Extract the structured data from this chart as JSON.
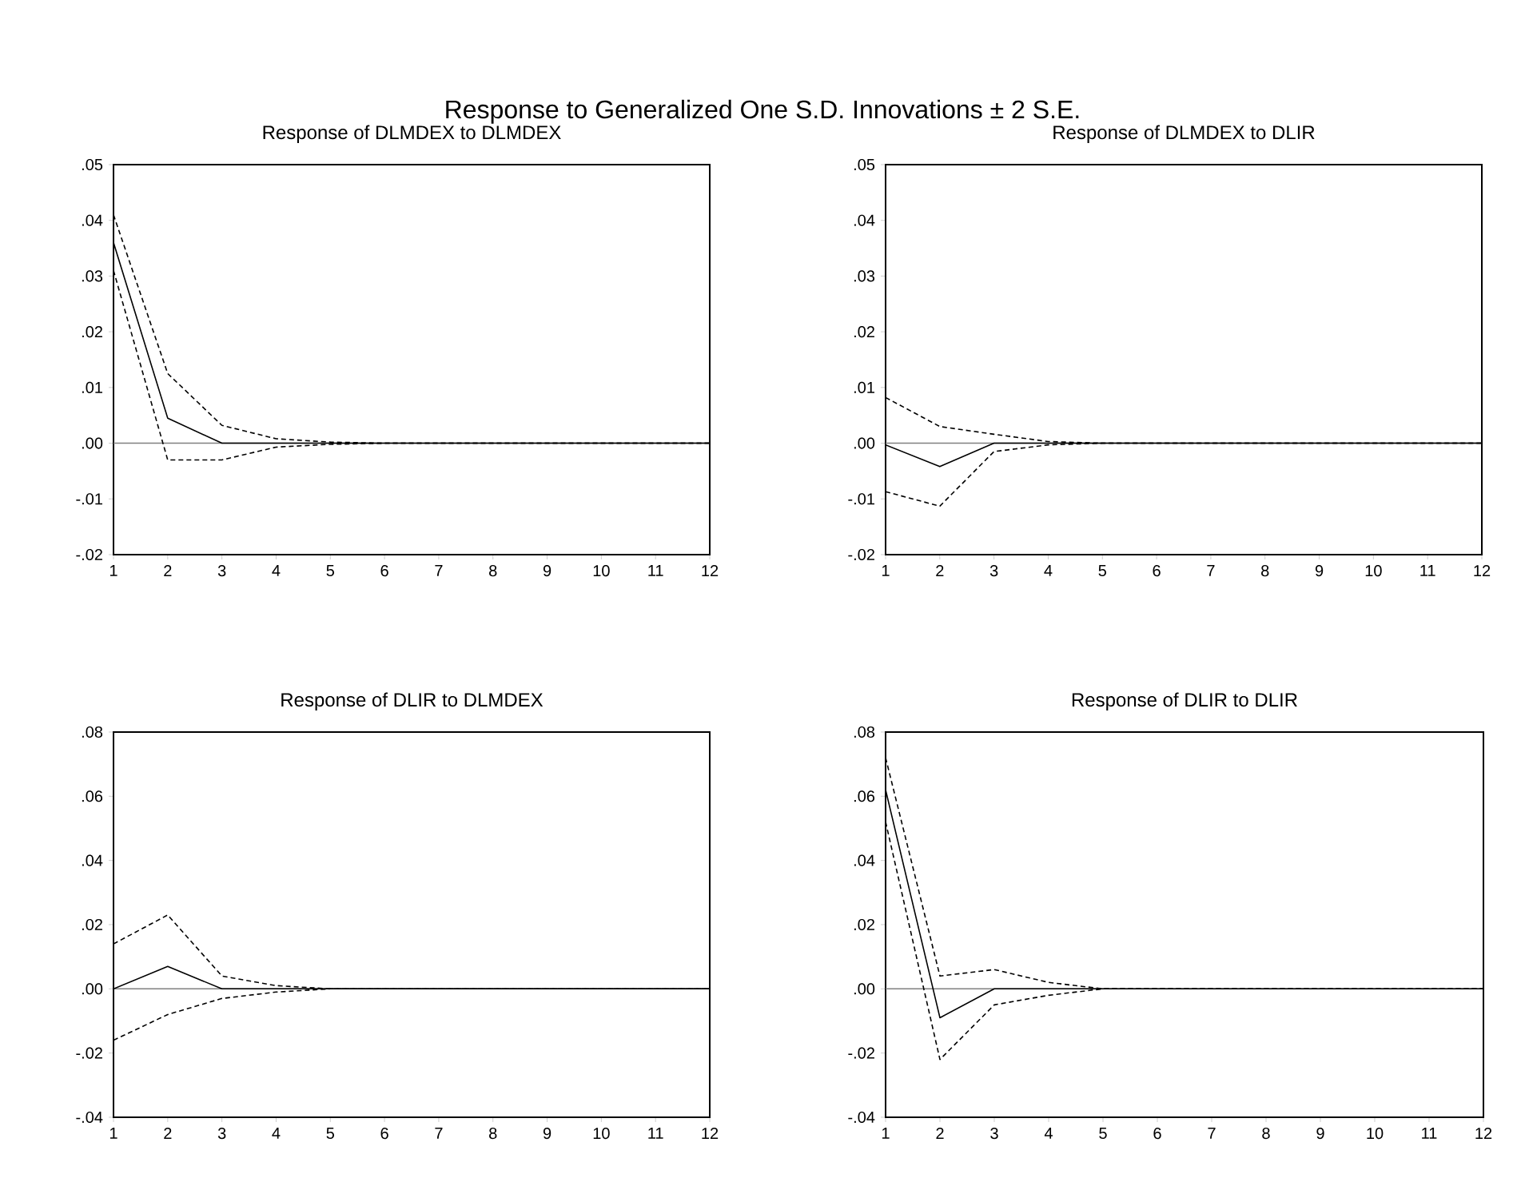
{
  "chart_data": [
    {
      "type": "line",
      "title": "Response to Generalized One S.D. Innovations ± 2 S.E.",
      "subtitle": "Response of DLMDEX to DLMDEX",
      "x": [
        1,
        2,
        3,
        4,
        5,
        6,
        7,
        8,
        9,
        10,
        11,
        12
      ],
      "xlim": [
        1,
        12
      ],
      "xticks": [
        1,
        2,
        3,
        4,
        5,
        6,
        7,
        8,
        9,
        10,
        11,
        12
      ],
      "ylim": [
        -0.02,
        0.05
      ],
      "yticks": [
        {
          "value": -0.02,
          "label": "-.02"
        },
        {
          "value": -0.01,
          "label": "-.01"
        },
        {
          "value": 0,
          "label": ".00"
        },
        {
          "value": 0.01,
          "label": ".01"
        },
        {
          "value": 0.02,
          "label": ".02"
        },
        {
          "value": 0.03,
          "label": ".03"
        },
        {
          "value": 0.04,
          "label": ".04"
        },
        {
          "value": 0.05,
          "label": ".05"
        }
      ],
      "grid": false,
      "ref_lines": [
        {
          "axis": "y",
          "value": 0,
          "color": "#808080"
        }
      ],
      "series": [
        {
          "color": "#000000",
          "line_style": "solid",
          "values": [
            0.036,
            0.0045,
            0.0,
            0,
            0,
            0,
            0,
            0,
            0,
            0,
            0,
            0
          ]
        },
        {
          "color": "#000000",
          "line_style": "dashed",
          "values": [
            0.041,
            0.0125,
            0.0032,
            0.0008,
            0.0002,
            0,
            0,
            0,
            0,
            0,
            0,
            0
          ]
        },
        {
          "color": "#000000",
          "line_style": "dashed",
          "values": [
            0.031,
            -0.003,
            -0.003,
            -0.0007,
            -0.0002,
            0,
            0,
            0,
            0,
            0,
            0,
            0
          ]
        }
      ]
    },
    {
      "type": "line",
      "title": "Response of DLMDEX to DLIR",
      "x": [
        1,
        2,
        3,
        4,
        5,
        6,
        7,
        8,
        9,
        10,
        11,
        12
      ],
      "xlim": [
        1,
        12
      ],
      "xticks": [
        1,
        2,
        3,
        4,
        5,
        6,
        7,
        8,
        9,
        10,
        11,
        12
      ],
      "ylim": [
        -0.02,
        0.05
      ],
      "yticks": [
        {
          "value": -0.02,
          "label": "-.02"
        },
        {
          "value": -0.01,
          "label": "-.01"
        },
        {
          "value": 0,
          "label": ".00"
        },
        {
          "value": 0.01,
          "label": ".01"
        },
        {
          "value": 0.02,
          "label": ".02"
        },
        {
          "value": 0.03,
          "label": ".03"
        },
        {
          "value": 0.04,
          "label": ".04"
        },
        {
          "value": 0.05,
          "label": ".05"
        }
      ],
      "grid": false,
      "ref_lines": [
        {
          "axis": "y",
          "value": 0,
          "color": "#808080"
        }
      ],
      "series": [
        {
          "color": "#000000",
          "line_style": "solid",
          "values": [
            -0.0003,
            -0.0042,
            0,
            0,
            0,
            0,
            0,
            0,
            0,
            0,
            0,
            0
          ]
        },
        {
          "color": "#000000",
          "line_style": "dashed",
          "values": [
            0.0082,
            0.003,
            0.0016,
            0.0003,
            0,
            0,
            0,
            0,
            0,
            0,
            0,
            0
          ]
        },
        {
          "color": "#000000",
          "line_style": "dashed",
          "values": [
            -0.0087,
            -0.0113,
            -0.0015,
            -0.0003,
            0,
            0,
            0,
            0,
            0,
            0,
            0,
            0
          ]
        }
      ]
    },
    {
      "type": "line",
      "title": "Response of DLIR to DLMDEX",
      "x": [
        1,
        2,
        3,
        4,
        5,
        6,
        7,
        8,
        9,
        10,
        11,
        12
      ],
      "xlim": [
        1,
        12
      ],
      "xticks": [
        1,
        2,
        3,
        4,
        5,
        6,
        7,
        8,
        9,
        10,
        11,
        12
      ],
      "ylim": [
        -0.04,
        0.08
      ],
      "yticks": [
        {
          "value": -0.04,
          "label": "-.04"
        },
        {
          "value": -0.02,
          "label": "-.02"
        },
        {
          "value": 0,
          "label": ".00"
        },
        {
          "value": 0.02,
          "label": ".02"
        },
        {
          "value": 0.04,
          "label": ".04"
        },
        {
          "value": 0.06,
          "label": ".06"
        },
        {
          "value": 0.08,
          "label": ".08"
        }
      ],
      "grid": false,
      "ref_lines": [
        {
          "axis": "y",
          "value": 0,
          "color": "#808080"
        }
      ],
      "series": [
        {
          "color": "#000000",
          "line_style": "solid",
          "values": [
            0,
            0.007,
            0,
            0,
            0,
            0,
            0,
            0,
            0,
            0,
            0,
            0
          ]
        },
        {
          "color": "#000000",
          "line_style": "dashed",
          "values": [
            0.014,
            0.023,
            0.004,
            0.001,
            0,
            0,
            0,
            0,
            0,
            0,
            0,
            0
          ]
        },
        {
          "color": "#000000",
          "line_style": "dashed",
          "values": [
            -0.016,
            -0.008,
            -0.003,
            -0.001,
            0,
            0,
            0,
            0,
            0,
            0,
            0,
            0
          ]
        }
      ]
    },
    {
      "type": "line",
      "title": "Response of DLIR to DLIR",
      "x": [
        1,
        2,
        3,
        4,
        5,
        6,
        7,
        8,
        9,
        10,
        11,
        12
      ],
      "xlim": [
        1,
        12
      ],
      "xticks": [
        1,
        2,
        3,
        4,
        5,
        6,
        7,
        8,
        9,
        10,
        11,
        12
      ],
      "ylim": [
        -0.04,
        0.08
      ],
      "yticks": [
        {
          "value": -0.04,
          "label": "-.04"
        },
        {
          "value": -0.02,
          "label": "-.02"
        },
        {
          "value": 0,
          "label": ".00"
        },
        {
          "value": 0.02,
          "label": ".02"
        },
        {
          "value": 0.04,
          "label": ".04"
        },
        {
          "value": 0.06,
          "label": ".06"
        },
        {
          "value": 0.08,
          "label": ".08"
        }
      ],
      "grid": false,
      "ref_lines": [
        {
          "axis": "y",
          "value": 0,
          "color": "#808080"
        }
      ],
      "series": [
        {
          "color": "#000000",
          "line_style": "solid",
          "values": [
            0.062,
            -0.009,
            0,
            0,
            0,
            0,
            0,
            0,
            0,
            0,
            0,
            0
          ]
        },
        {
          "color": "#000000",
          "line_style": "dashed",
          "values": [
            0.072,
            0.004,
            0.006,
            0.002,
            0,
            0,
            0,
            0,
            0,
            0,
            0,
            0
          ]
        },
        {
          "color": "#000000",
          "line_style": "dashed",
          "values": [
            0.052,
            -0.022,
            -0.005,
            -0.002,
            0,
            0,
            0,
            0,
            0,
            0,
            0,
            0
          ]
        }
      ]
    }
  ]
}
